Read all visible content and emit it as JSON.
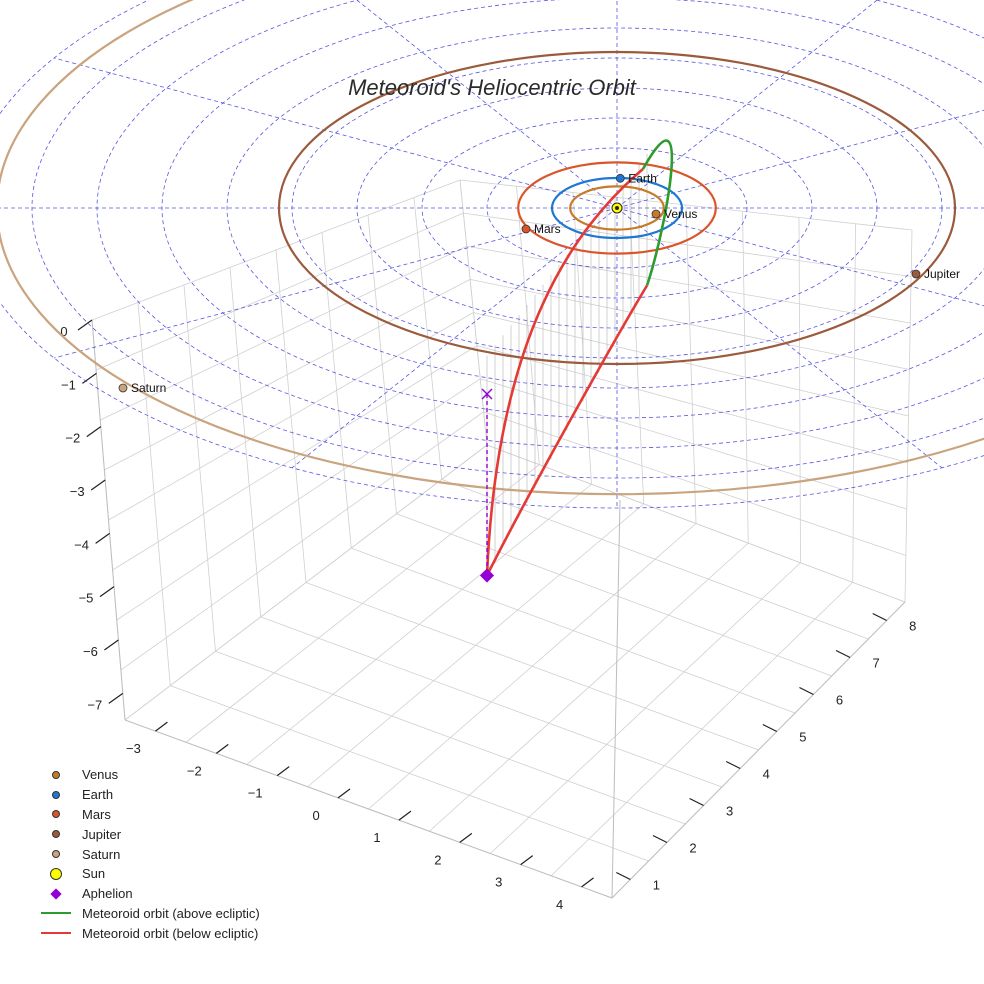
{
  "chart_data": {
    "type": "scatter3d",
    "title": "Meteoroid's Heliocentric Orbit",
    "axes": {
      "x": {
        "ticks": [
          -3,
          -2,
          -1,
          0,
          1,
          2,
          3,
          4
        ],
        "range": [
          -3.5,
          4.5
        ]
      },
      "y": {
        "ticks": [
          1,
          2,
          3,
          4,
          5,
          6,
          7,
          8
        ],
        "range": [
          0.5,
          8.5
        ]
      },
      "z": {
        "ticks": [
          0,
          -1,
          -2,
          -3,
          -4,
          -5,
          -6,
          -7
        ],
        "range": [
          -7.5,
          0
        ]
      }
    },
    "grid": true,
    "ecliptic_grid": {
      "color": "#3a3adc",
      "rings": [
        1,
        2,
        3,
        4,
        5,
        6,
        7,
        8,
        9,
        10
      ],
      "spokes": 12
    },
    "planets": [
      {
        "name": "Venus",
        "orbit_radius": 0.72,
        "color": "#c77b2a",
        "label_pos": {
          "x": 0.6,
          "y": -0.2
        }
      },
      {
        "name": "Earth",
        "orbit_radius": 1.0,
        "color": "#1f77d4",
        "label_pos": {
          "x": 0.05,
          "y": 0.99
        }
      },
      {
        "name": "Mars",
        "orbit_radius": 1.52,
        "color": "#d9552a",
        "label_pos": {
          "x": -1.4,
          "y": -0.7
        }
      },
      {
        "name": "Jupiter",
        "orbit_radius": 5.2,
        "color": "#9c5a3c",
        "label_pos": {
          "x": 4.6,
          "y": -2.2
        }
      },
      {
        "name": "Saturn",
        "orbit_radius": 9.54,
        "color": "#c9a47e",
        "label_pos": {
          "x": -7.6,
          "y": -6.0
        }
      }
    ],
    "sun": {
      "name": "Sun",
      "color": "#ffff00"
    },
    "aphelion": {
      "name": "Aphelion",
      "color": "#9400d3",
      "position": {
        "x": -2.0,
        "y": -6.2,
        "z": -5.5
      }
    },
    "series": [
      {
        "name": "Meteoroid orbit (above ecliptic)",
        "color": "#2e9b2e"
      },
      {
        "name": "Meteoroid orbit (below ecliptic)",
        "color": "#e53935"
      }
    ],
    "legend_position": "bottom-left"
  }
}
